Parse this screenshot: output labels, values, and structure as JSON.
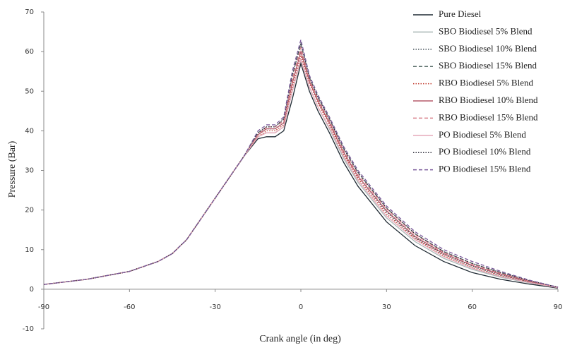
{
  "chart_data": {
    "type": "line",
    "x_label": "Crank angle (in deg)",
    "y_label": "Pressure (Bar)",
    "xlim": [
      -90,
      90
    ],
    "xticks": [
      -90,
      -60,
      -30,
      0,
      30,
      60,
      90
    ],
    "ylim": [
      -10,
      70
    ],
    "yticks": [
      -10,
      0,
      10,
      20,
      30,
      40,
      50,
      60,
      70
    ],
    "legend": "top-right",
    "x": [
      -90,
      -75,
      -60,
      -50,
      -45,
      -40,
      -30,
      -20,
      -15,
      -12,
      -9,
      -6,
      -3,
      0,
      3,
      6,
      10,
      15,
      20,
      30,
      40,
      50,
      60,
      70,
      80,
      90
    ],
    "series": [
      {
        "name": "Pure Diesel",
        "color": "#1f2a33",
        "style": "solid",
        "values": [
          1.2,
          2.5,
          4.5,
          7,
          9,
          12.5,
          23,
          33.5,
          38,
          38.5,
          38.5,
          40,
          48,
          57,
          50,
          45,
          39.5,
          32,
          26,
          17,
          11,
          7,
          4.2,
          2.5,
          1.3,
          0.3
        ]
      },
      {
        "name": "SBO Biodiesel 5% Blend",
        "color": "#a9b7b5",
        "style": "solid",
        "values": [
          1.2,
          2.5,
          4.5,
          7,
          9,
          12.5,
          23,
          33.5,
          38.5,
          39.5,
          39.5,
          41,
          50,
          58,
          51,
          46,
          40.5,
          33,
          27,
          18,
          12,
          7.8,
          5,
          3,
          1.6,
          0.4
        ]
      },
      {
        "name": "SBO Biodiesel 10% Blend",
        "color": "#3c4a52",
        "style": "dotted",
        "values": [
          1.2,
          2.5,
          4.5,
          7,
          9,
          12.5,
          23,
          33.5,
          39,
          40.5,
          40.5,
          42,
          52,
          60,
          52.5,
          47.5,
          42,
          34.5,
          28.5,
          19.5,
          13,
          8.8,
          5.8,
          3.6,
          1.9,
          0.5
        ]
      },
      {
        "name": "SBO Biodiesel  15% Blend",
        "color": "#5a6e6a",
        "style": "dashed",
        "values": [
          1.2,
          2.5,
          4.5,
          7,
          9,
          12.5,
          23,
          33.5,
          39.5,
          41,
          41,
          43,
          54,
          62,
          53.5,
          48.5,
          43,
          35.5,
          29.5,
          20.5,
          14,
          9.5,
          6.5,
          4.2,
          2.2,
          0.5
        ]
      },
      {
        "name": "RBO Biodiesel 5% Blend",
        "color": "#c0392b",
        "style": "dotted",
        "values": [
          1.2,
          2.5,
          4.5,
          7,
          9,
          12.5,
          23,
          33.5,
          38.5,
          40,
          40,
          41.5,
          51,
          59,
          52,
          47,
          41.5,
          34,
          28,
          19,
          12.8,
          8.5,
          5.5,
          3.4,
          1.8,
          0.4
        ]
      },
      {
        "name": "RBO Biodiesel 10% Blend",
        "color": "#b55a6a",
        "style": "solid",
        "values": [
          1.2,
          2.5,
          4.5,
          7,
          9,
          12.5,
          23,
          33.5,
          39,
          40.5,
          40.5,
          42,
          52,
          60,
          52.5,
          47.5,
          42,
          34.5,
          28.5,
          19.8,
          13.3,
          9,
          6,
          3.8,
          2,
          0.5
        ]
      },
      {
        "name": "RBO Biodiesel 15% Blend",
        "color": "#d9808a",
        "style": "dashed",
        "values": [
          1.2,
          2.5,
          4.5,
          7,
          9,
          12.5,
          23,
          33.5,
          39,
          41,
          41,
          42.5,
          53,
          61,
          53,
          48,
          42.5,
          35,
          29,
          20.3,
          13.8,
          9.3,
          6.3,
          4,
          2.1,
          0.5
        ]
      },
      {
        "name": "PO Biodiesel 5% Blend",
        "color": "#e6a9b9",
        "style": "solid",
        "values": [
          1.2,
          2.5,
          4.5,
          7,
          9,
          12.5,
          23,
          33.5,
          38.5,
          39.5,
          39.5,
          41,
          50,
          58,
          51,
          46,
          40.8,
          33.5,
          27.5,
          18.5,
          12.5,
          8.2,
          5.3,
          3.2,
          1.7,
          0.4
        ]
      },
      {
        "name": "PO Biodiesel 10% Blend",
        "color": "#2c2c3a",
        "style": "dotted",
        "values": [
          1.2,
          2.5,
          4.5,
          7,
          9,
          12.5,
          23,
          33.5,
          39.5,
          41,
          41,
          43,
          54,
          62,
          53.5,
          48.5,
          43,
          35.5,
          29.5,
          20.5,
          14,
          9.5,
          6.5,
          4.2,
          2.2,
          0.5
        ]
      },
      {
        "name": "PO Biodiesel 15% Blend",
        "color": "#7a5a9a",
        "style": "dashed",
        "values": [
          1.2,
          2.5,
          4.5,
          7,
          9,
          12.5,
          23,
          33.5,
          40,
          41.5,
          41.5,
          43.5,
          55,
          63,
          54,
          49,
          43.5,
          36,
          30,
          21,
          14.5,
          10,
          7,
          4.5,
          2.3,
          0.5
        ]
      }
    ]
  }
}
